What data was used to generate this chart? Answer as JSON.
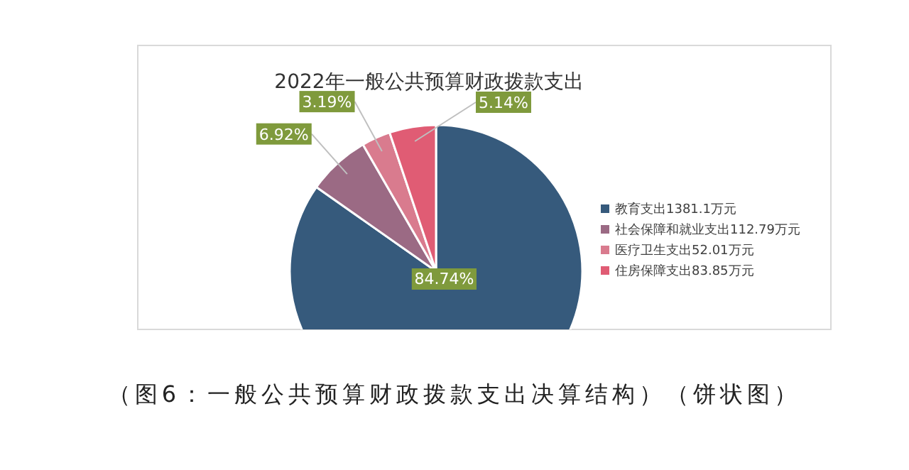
{
  "chart_data": {
    "type": "pie",
    "title": "2022年一般公共预算财政拨款支出",
    "categories": [
      "教育支出1381.1万元",
      "社会保障和就业支出112.79万元",
      "医疗卫生支出52.01万元",
      "住房保障支出83.85万元"
    ],
    "values": [
      84.74,
      6.92,
      3.19,
      5.14
    ],
    "colors": [
      "#365a7c",
      "#9b6a84",
      "#d97b8e",
      "#e05c74"
    ],
    "value_labels": [
      "84.74%",
      "6.92%",
      "3.19%",
      "5.14%"
    ],
    "legend": "right",
    "annotations": [
      "（图6：一般公共预算财政拨款支出决算结构）（饼状图）"
    ]
  }
}
